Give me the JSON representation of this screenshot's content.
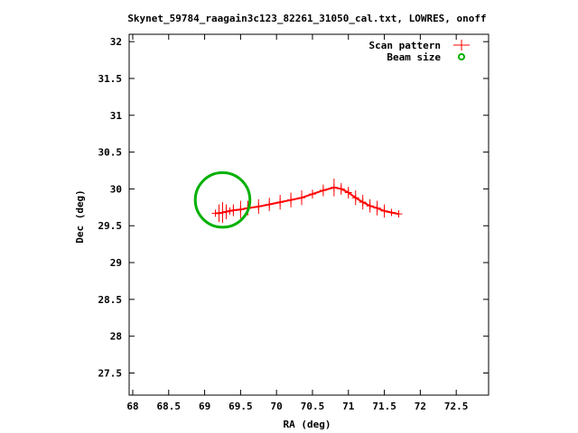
{
  "chart_data": {
    "type": "scatter",
    "title": "Skynet_59784_raagain3c123_82261_31050_cal.txt, LOWRES, onoff",
    "xlabel": "RA (deg)",
    "ylabel": "Dec (deg)",
    "xlim": [
      67.95,
      72.95
    ],
    "ylim": [
      27.2,
      32.1
    ],
    "xticks": [
      68,
      68.5,
      69,
      69.5,
      70,
      70.5,
      71,
      71.5,
      72,
      72.5
    ],
    "yticks": [
      27.5,
      28,
      28.5,
      29,
      29.5,
      30,
      30.5,
      31,
      31.5,
      32
    ],
    "legend_position": "top-right",
    "grid": false,
    "series": [
      {
        "name": "Scan pattern",
        "color": "#ff0000",
        "marker": "plus",
        "x": [
          69.15,
          69.2,
          69.25,
          69.3,
          69.35,
          69.4,
          69.5,
          69.6,
          69.75,
          69.9,
          70.05,
          70.2,
          70.35,
          70.5,
          70.65,
          70.8,
          70.9,
          71.0,
          71.1,
          71.2,
          71.3,
          71.4,
          71.5,
          71.6,
          71.7
        ],
        "y": [
          29.67,
          29.67,
          29.68,
          29.69,
          29.7,
          29.71,
          29.72,
          29.74,
          29.76,
          29.79,
          29.82,
          29.85,
          29.88,
          29.93,
          29.98,
          30.02,
          30.0,
          29.95,
          29.88,
          29.82,
          29.77,
          29.74,
          29.7,
          29.68,
          29.66
        ],
        "yerr": [
          0.01,
          0.12,
          0.14,
          0.1,
          0.02,
          0.08,
          0.12,
          0.1,
          0.1,
          0.09,
          0.1,
          0.1,
          0.1,
          0.06,
          0.08,
          0.12,
          0.08,
          0.08,
          0.1,
          0.1,
          0.09,
          0.1,
          0.09,
          0.04,
          0.01
        ]
      },
      {
        "name": "Beam size",
        "color": "#00b000",
        "marker": "circle",
        "center": [
          69.25,
          29.85
        ],
        "radius_deg": 0.38
      }
    ]
  }
}
